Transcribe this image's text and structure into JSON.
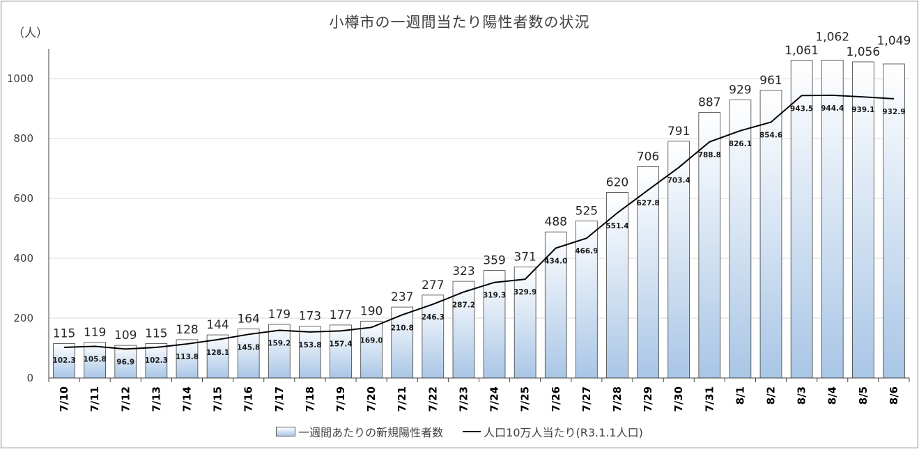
{
  "title": "小樽市の一週間当たり陽性者数の状況",
  "unit_label": "（人）",
  "legend": {
    "bars": "一週間あたりの新規陽性者数",
    "line": "人口10万人当たり(R3.1.1人口)"
  },
  "colors": {
    "bar_top": "#ffffff",
    "bar_bottom": "#a9c6e6",
    "bar_border": "#404040",
    "line": "#000000",
    "grid": "#d9d9d9"
  },
  "chart_data": {
    "type": "bar",
    "categories": [
      "7/10",
      "7/11",
      "7/12",
      "7/13",
      "7/14",
      "7/15",
      "7/16",
      "7/17",
      "7/18",
      "7/19",
      "7/20",
      "7/21",
      "7/22",
      "7/23",
      "7/24",
      "7/25",
      "7/26",
      "7/27",
      "7/28",
      "7/29",
      "7/30",
      "7/31",
      "8/1",
      "8/2",
      "8/3",
      "8/4",
      "8/5",
      "8/6"
    ],
    "series": [
      {
        "name": "一週間あたりの新規陽性者数",
        "type": "bar",
        "values": [
          115,
          119,
          109,
          115,
          128,
          144,
          164,
          179,
          173,
          177,
          190,
          237,
          277,
          323,
          359,
          371,
          488,
          525,
          620,
          706,
          791,
          887,
          929,
          961,
          1061,
          1062,
          1056,
          1049
        ],
        "labels": [
          "115",
          "119",
          "109",
          "115",
          "128",
          "144",
          "164",
          "179",
          "173",
          "177",
          "190",
          "237",
          "277",
          "323",
          "359",
          "371",
          "488",
          "525",
          "620",
          "706",
          "791",
          "887",
          "929",
          "961",
          "1,061",
          "1,062",
          "1,056",
          "1,049"
        ]
      },
      {
        "name": "人口10万人当たり(R3.1.1人口)",
        "type": "line",
        "values": [
          102.3,
          105.8,
          96.9,
          102.3,
          113.8,
          128.1,
          145.8,
          159.2,
          153.8,
          157.4,
          169.0,
          210.8,
          246.3,
          287.2,
          319.3,
          329.9,
          434.0,
          466.9,
          551.4,
          627.8,
          703.4,
          788.8,
          826.1,
          854.6,
          943.5,
          944.4,
          939.1,
          932.9
        ],
        "labels": [
          "102.3",
          "105.8",
          "96.9",
          "102.3",
          "113.8",
          "128.1",
          "145.8",
          "159.2",
          "153.8",
          "157.4",
          "169.0",
          "210.8",
          "246.3",
          "287.2",
          "319.3",
          "329.9",
          "434.0",
          "466.9",
          "551.4",
          "627.8",
          "703.4",
          "788.8",
          "826.1",
          "854.6",
          "943.5",
          "944.4",
          "939.1",
          "932.9"
        ]
      }
    ],
    "y_ticks": [
      "0",
      "200",
      "400",
      "600",
      "800",
      "1000"
    ],
    "ylim": [
      0,
      1100
    ],
    "grid": true,
    "legend_position": "bottom"
  }
}
